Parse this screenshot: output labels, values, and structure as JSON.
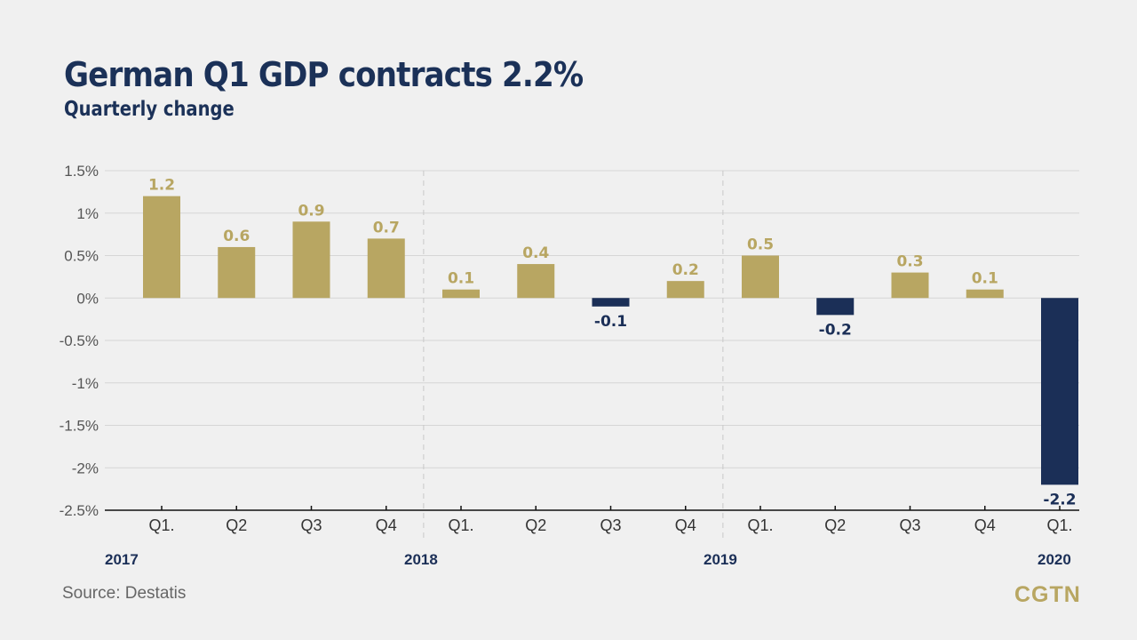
{
  "title": "German Q1 GDP contracts 2.2%",
  "subtitle": "Quarterly change",
  "source": "Source: Destatis",
  "logo": "CGTN",
  "colors": {
    "positive": "#b8a662",
    "negative": "#1b2f57",
    "background": "#f0f0f0"
  },
  "chart_data": {
    "type": "bar",
    "title": "German Q1 GDP contracts 2.2%",
    "subtitle": "Quarterly change",
    "categories": [
      "Q1.",
      "Q2",
      "Q3",
      "Q4",
      "Q1.",
      "Q2",
      "Q3",
      "Q4",
      "Q1.",
      "Q2",
      "Q3",
      "Q4",
      "Q1."
    ],
    "years": [
      {
        "label": "2017",
        "start": 0
      },
      {
        "label": "2018",
        "start": 4
      },
      {
        "label": "2019",
        "start": 8
      },
      {
        "label": "2020",
        "start": 12
      }
    ],
    "values": [
      1.2,
      0.6,
      0.9,
      0.7,
      0.1,
      0.4,
      -0.1,
      0.2,
      0.5,
      -0.2,
      0.3,
      0.1,
      -2.2
    ],
    "data_labels": [
      "1.2",
      "0.6",
      "0.9",
      "0.7",
      "0.1",
      "0.4",
      "-0.1",
      "0.2",
      "0.5",
      "-0.2",
      "0.3",
      "0.1",
      "-2.2"
    ],
    "ylim": [
      -2.5,
      1.5
    ],
    "yticks": [
      1.5,
      1,
      0.5,
      0,
      -0.5,
      -1,
      -1.5,
      -2,
      -2.5
    ],
    "ytick_labels": [
      "1.5%",
      "1%",
      "0.5%",
      "0%",
      "-0.5%",
      "-1%",
      "-1.5%",
      "-2%",
      "-2.5%"
    ],
    "grid": true,
    "xlabel": "",
    "ylabel": ""
  }
}
